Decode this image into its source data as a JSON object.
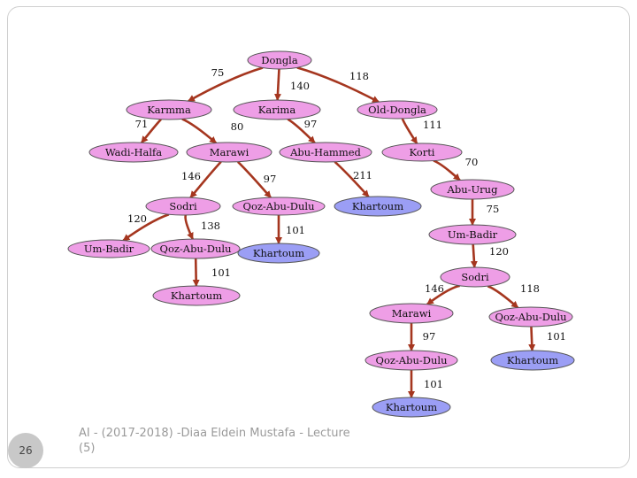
{
  "colors": {
    "pink": "#ee9ee6",
    "blue": "#9b9ef5",
    "edge": "#a5361f",
    "node_stroke": "#555555"
  },
  "nodes": [
    {
      "id": "dongla",
      "label": "Dongla",
      "color": "pink"
    },
    {
      "id": "karmma",
      "label": "Karmma",
      "color": "pink"
    },
    {
      "id": "karima",
      "label": "Karima",
      "color": "pink"
    },
    {
      "id": "old-dongla",
      "label": "Old-Dongla",
      "color": "pink"
    },
    {
      "id": "wadi-halfa",
      "label": "Wadi-Halfa",
      "color": "pink"
    },
    {
      "id": "marawi-1",
      "label": "Marawi",
      "color": "pink"
    },
    {
      "id": "abu-hammed",
      "label": "Abu-Hammed",
      "color": "pink"
    },
    {
      "id": "korti",
      "label": "Korti",
      "color": "pink"
    },
    {
      "id": "sodri-1",
      "label": "Sodri",
      "color": "pink"
    },
    {
      "id": "qoz-abu-dulu-1",
      "label": "Qoz-Abu-Dulu",
      "color": "pink"
    },
    {
      "id": "khartoum-1",
      "label": "Khartoum",
      "color": "blue"
    },
    {
      "id": "abu-urug",
      "label": "Abu-Urug",
      "color": "pink"
    },
    {
      "id": "um-badir-1",
      "label": "Um-Badir",
      "color": "pink"
    },
    {
      "id": "qoz-abu-dulu-2",
      "label": "Qoz-Abu-Dulu",
      "color": "pink"
    },
    {
      "id": "khartoum-2",
      "label": "Khartoum",
      "color": "blue"
    },
    {
      "id": "um-badir-2",
      "label": "Um-Badir",
      "color": "pink"
    },
    {
      "id": "khartoum-3",
      "label": "Khartoum",
      "color": "pink"
    },
    {
      "id": "sodri-2",
      "label": "Sodri",
      "color": "pink"
    },
    {
      "id": "marawi-2",
      "label": "Marawi",
      "color": "pink"
    },
    {
      "id": "qoz-abu-dulu-3",
      "label": "Qoz-Abu-Dulu",
      "color": "pink"
    },
    {
      "id": "qoz-abu-dulu-4",
      "label": "Qoz-Abu-Dulu",
      "color": "pink"
    },
    {
      "id": "khartoum-4",
      "label": "Khartoum",
      "color": "blue"
    },
    {
      "id": "khartoum-5",
      "label": "Khartoum",
      "color": "blue"
    }
  ],
  "edges": [
    {
      "from": "dongla",
      "to": "karmma",
      "cost": "75"
    },
    {
      "from": "dongla",
      "to": "karima",
      "cost": "140"
    },
    {
      "from": "dongla",
      "to": "old-dongla",
      "cost": "118"
    },
    {
      "from": "karmma",
      "to": "wadi-halfa",
      "cost": "71"
    },
    {
      "from": "karmma",
      "to": "marawi-1",
      "cost": "80"
    },
    {
      "from": "karima",
      "to": "abu-hammed",
      "cost": "97"
    },
    {
      "from": "old-dongla",
      "to": "korti",
      "cost": "111"
    },
    {
      "from": "marawi-1",
      "to": "sodri-1",
      "cost": "146"
    },
    {
      "from": "marawi-1",
      "to": "qoz-abu-dulu-1",
      "cost": "97"
    },
    {
      "from": "abu-hammed",
      "to": "khartoum-1",
      "cost": "211"
    },
    {
      "from": "korti",
      "to": "abu-urug",
      "cost": "70"
    },
    {
      "from": "sodri-1",
      "to": "um-badir-1",
      "cost": "120"
    },
    {
      "from": "sodri-1",
      "to": "qoz-abu-dulu-2",
      "cost": "138"
    },
    {
      "from": "qoz-abu-dulu-1",
      "to": "khartoum-2",
      "cost": "101"
    },
    {
      "from": "abu-urug",
      "to": "um-badir-2",
      "cost": "75"
    },
    {
      "from": "qoz-abu-dulu-2",
      "to": "khartoum-3",
      "cost": "101"
    },
    {
      "from": "um-badir-2",
      "to": "sodri-2",
      "cost": "120"
    },
    {
      "from": "sodri-2",
      "to": "marawi-2",
      "cost": "146"
    },
    {
      "from": "sodri-2",
      "to": "qoz-abu-dulu-3",
      "cost": "118"
    },
    {
      "from": "marawi-2",
      "to": "qoz-abu-dulu-4",
      "cost": "97"
    },
    {
      "from": "qoz-abu-dulu-3",
      "to": "khartoum-4",
      "cost": "101"
    },
    {
      "from": "qoz-abu-dulu-4",
      "to": "khartoum-5",
      "cost": "101"
    }
  ],
  "footer": {
    "text": "AI - (2017-2018) -Diaa Eldein Mustafa - Lecture (5)",
    "page_number": "26"
  }
}
